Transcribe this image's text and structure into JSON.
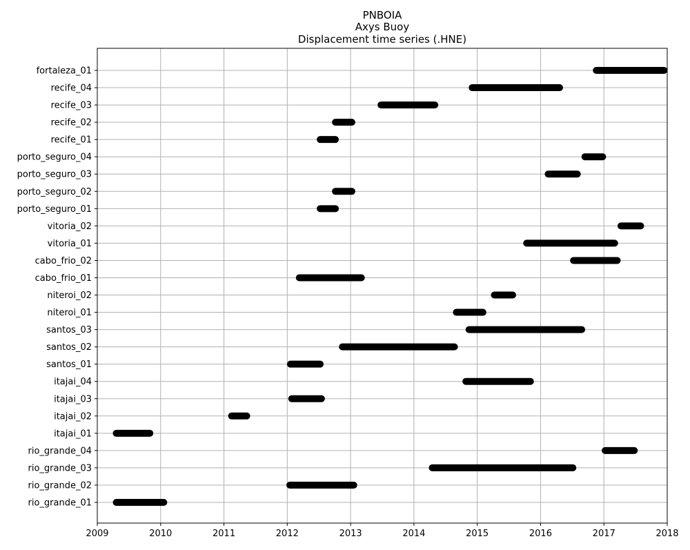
{
  "chart_data": {
    "type": "timeline",
    "title": "PNBOIA",
    "subtitle": [
      "Axys Buoy",
      "Displacement time series (.HNE)"
    ],
    "xlabel": "",
    "ylabel": "",
    "xlim": [
      2009,
      2018
    ],
    "xticks": [
      2009,
      2010,
      2011,
      2012,
      2013,
      2014,
      2015,
      2016,
      2017,
      2018
    ],
    "xtick_labels": [
      "2009",
      "2010",
      "2011",
      "2012",
      "2013",
      "2014",
      "2015",
      "2016",
      "2017",
      "2018"
    ],
    "grid": true,
    "bar_color": "#000000",
    "grid_color": "#b0b0b0",
    "series": [
      {
        "name": "fortaleza_01",
        "start": 2016.88,
        "end": 2017.95
      },
      {
        "name": "recife_04",
        "start": 2014.92,
        "end": 2016.3
      },
      {
        "name": "recife_03",
        "start": 2013.48,
        "end": 2014.33
      },
      {
        "name": "recife_02",
        "start": 2012.76,
        "end": 2013.02
      },
      {
        "name": "recife_01",
        "start": 2012.52,
        "end": 2012.76
      },
      {
        "name": "porto_seguro_04",
        "start": 2016.7,
        "end": 2016.98
      },
      {
        "name": "porto_seguro_03",
        "start": 2016.12,
        "end": 2016.58
      },
      {
        "name": "porto_seguro_02",
        "start": 2012.76,
        "end": 2013.02
      },
      {
        "name": "porto_seguro_01",
        "start": 2012.52,
        "end": 2012.76
      },
      {
        "name": "vitoria_02",
        "start": 2017.27,
        "end": 2017.58
      },
      {
        "name": "vitoria_01",
        "start": 2015.78,
        "end": 2017.17
      },
      {
        "name": "cabo_frio_02",
        "start": 2016.52,
        "end": 2017.21
      },
      {
        "name": "cabo_frio_01",
        "start": 2012.19,
        "end": 2013.17
      },
      {
        "name": "niteroi_02",
        "start": 2015.27,
        "end": 2015.56
      },
      {
        "name": "niteroi_01",
        "start": 2014.67,
        "end": 2015.09
      },
      {
        "name": "santos_03",
        "start": 2014.87,
        "end": 2016.65
      },
      {
        "name": "santos_02",
        "start": 2012.87,
        "end": 2014.64
      },
      {
        "name": "santos_01",
        "start": 2012.05,
        "end": 2012.52
      },
      {
        "name": "itajai_04",
        "start": 2014.82,
        "end": 2015.84
      },
      {
        "name": "itajai_03",
        "start": 2012.07,
        "end": 2012.54
      },
      {
        "name": "itajai_02",
        "start": 2011.12,
        "end": 2011.36
      },
      {
        "name": "itajai_01",
        "start": 2009.3,
        "end": 2009.83
      },
      {
        "name": "rio_grande_04",
        "start": 2017.02,
        "end": 2017.48
      },
      {
        "name": "rio_grande_03",
        "start": 2014.29,
        "end": 2016.51
      },
      {
        "name": "rio_grande_02",
        "start": 2012.04,
        "end": 2013.05
      },
      {
        "name": "rio_grande_01",
        "start": 2009.3,
        "end": 2010.05
      }
    ]
  }
}
